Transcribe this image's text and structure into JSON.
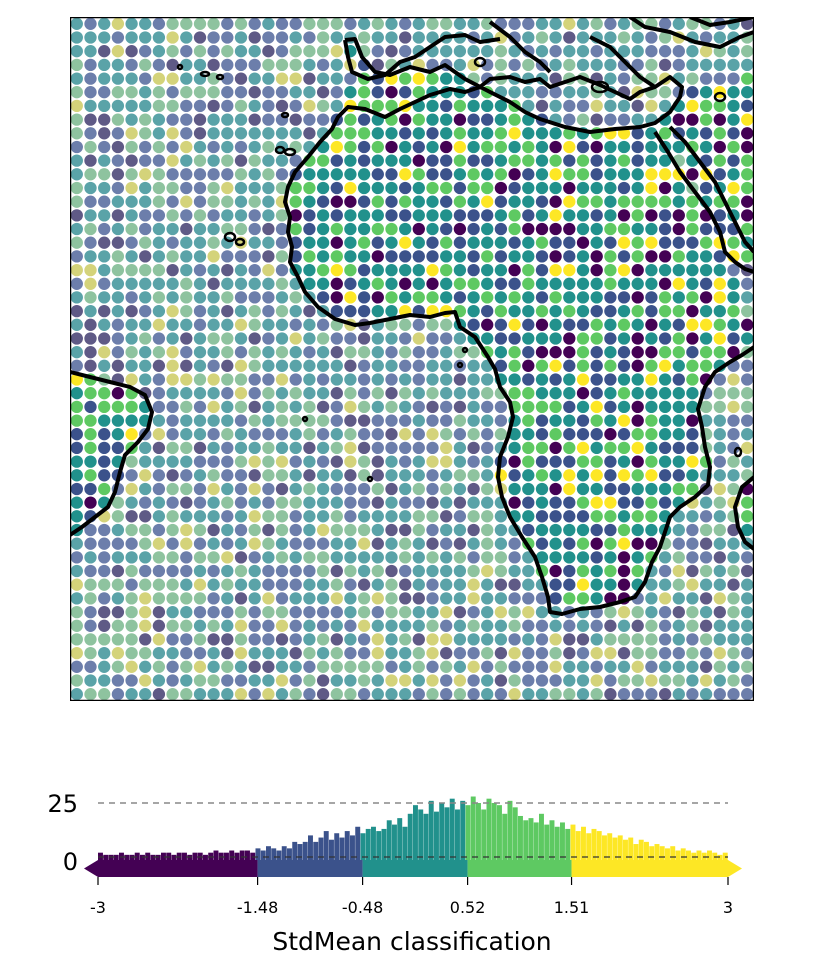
{
  "map": {
    "grid": {
      "cols": 50,
      "rows": 50
    },
    "land_color_scheme": "viridis",
    "ocean_opacity": 0.7,
    "frame": "black"
  },
  "colorbar": {
    "xlabel": "StdMean classification",
    "ticks": [
      "-3",
      "-1.48",
      "-0.48",
      "0.52",
      "1.51",
      "3"
    ],
    "tick_values": [
      -3,
      -1.48,
      -0.48,
      0.52,
      1.51,
      3
    ],
    "y_ticks": [
      "25",
      "0"
    ],
    "classes": [
      {
        "from": -3,
        "to": -1.48,
        "color": "#440154"
      },
      {
        "from": -1.48,
        "to": -0.48,
        "color": "#3b528b"
      },
      {
        "from": -0.48,
        "to": 0.52,
        "color": "#21918c"
      },
      {
        "from": 0.52,
        "to": 1.51,
        "color": "#5ec962"
      },
      {
        "from": 1.51,
        "to": 3,
        "color": "#fde725"
      }
    ]
  },
  "chart_data": {
    "type": "bar",
    "title": "",
    "xlabel": "StdMean classification",
    "ylabel": "",
    "xlim": [
      -3,
      3
    ],
    "ylim": [
      0,
      25
    ],
    "description_of_series": "histogram of StdMean values",
    "bin_width": 0.05,
    "counts": [
      2,
      1,
      1,
      1,
      2,
      1,
      1,
      2,
      1,
      2,
      1,
      1,
      2,
      2,
      1,
      2,
      2,
      1,
      2,
      2,
      1,
      2,
      3,
      2,
      2,
      3,
      2,
      3,
      3,
      2,
      4,
      3,
      5,
      4,
      3,
      5,
      4,
      7,
      6,
      7,
      10,
      7,
      9,
      12,
      8,
      11,
      9,
      12,
      10,
      14,
      11,
      13,
      14,
      12,
      13,
      17,
      15,
      18,
      14,
      20,
      24,
      22,
      20,
      26,
      21,
      25,
      23,
      27,
      22,
      26,
      24,
      28,
      25,
      22,
      27,
      25,
      24,
      20,
      26,
      23,
      19,
      17,
      18,
      16,
      20,
      15,
      17,
      14,
      16,
      13,
      15,
      12,
      14,
      11,
      13,
      12,
      10,
      11,
      9,
      10,
      8,
      9,
      6,
      8,
      7,
      5,
      6,
      5,
      4,
      5,
      3,
      4,
      3,
      2,
      3,
      2,
      3,
      2,
      1,
      2
    ]
  }
}
